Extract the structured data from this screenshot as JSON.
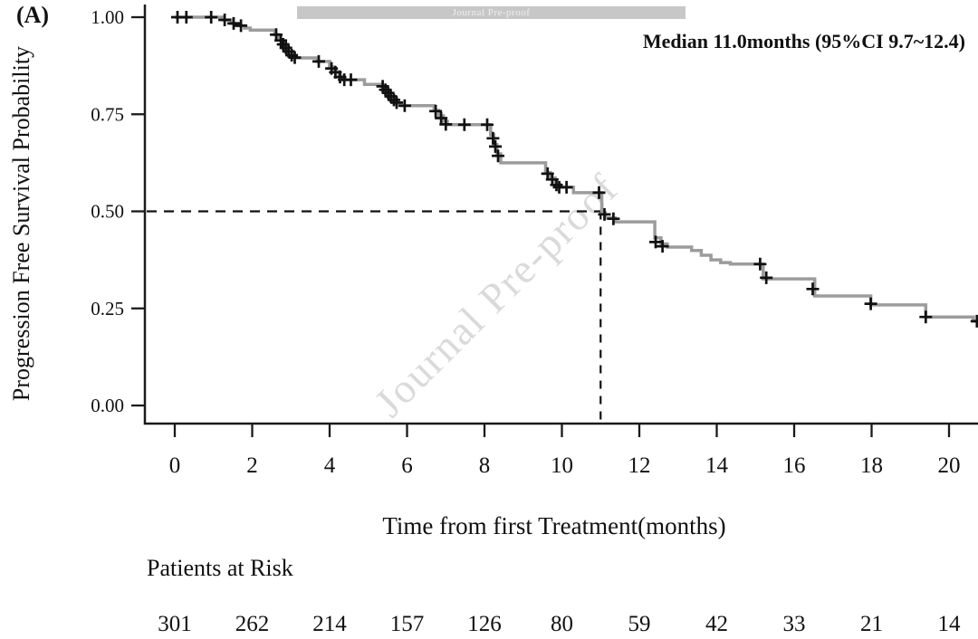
{
  "panel_label": "(A)",
  "watermark": {
    "banner_text": "Journal Pre-proof",
    "diagonal_text": "Journal Pre-proof"
  },
  "annotation": {
    "text": "Median 11.0months (95%CI 9.7~12.4)"
  },
  "risk_table": {
    "title": "Patients at Risk"
  },
  "chart_data": {
    "type": "line",
    "subtype": "kaplan-meier-step-curve",
    "title": "",
    "xlabel": "Time from first Treatment(months)",
    "ylabel": "Progression Free Survival Probability",
    "xlim": [
      0,
      20.78
    ],
    "ylim": [
      0,
      1
    ],
    "grid": false,
    "legend": "none",
    "x_ticks": [
      {
        "v": 0,
        "label": "0"
      },
      {
        "v": 2,
        "label": "2"
      },
      {
        "v": 4,
        "label": "4"
      },
      {
        "v": 6,
        "label": "6"
      },
      {
        "v": 8,
        "label": "8"
      },
      {
        "v": 10,
        "label": "10"
      },
      {
        "v": 12,
        "label": "12"
      },
      {
        "v": 14,
        "label": "14"
      },
      {
        "v": 16,
        "label": "16"
      },
      {
        "v": 18,
        "label": "18"
      },
      {
        "v": 20,
        "label": "20"
      }
    ],
    "y_ticks": [
      {
        "v": 1.0,
        "label": "1.00"
      },
      {
        "v": 0.75,
        "label": "0.75"
      },
      {
        "v": 0.5,
        "label": "0.50"
      },
      {
        "v": 0.25,
        "label": "0.25"
      },
      {
        "v": 0.0,
        "label": "0.00"
      }
    ],
    "median": {
      "time_months": 11.0,
      "ci_low": 9.7,
      "ci_high": 12.4,
      "survival_probability": 0.5
    },
    "reference_lines": {
      "horizontal_at_probability": 0.5,
      "vertical_at_time": 11.0,
      "style": "dashed"
    },
    "series": [
      {
        "name": "Progression Free Survival",
        "steps": [
          [
            0,
            1.0
          ],
          [
            1.25,
            0.993
          ],
          [
            1.45,
            0.984
          ],
          [
            1.62,
            0.978
          ],
          [
            1.8,
            0.972
          ],
          [
            1.95,
            0.967
          ],
          [
            2.58,
            0.955
          ],
          [
            2.68,
            0.942
          ],
          [
            2.76,
            0.931
          ],
          [
            2.84,
            0.92
          ],
          [
            2.92,
            0.91
          ],
          [
            3.02,
            0.9
          ],
          [
            3.1,
            0.895
          ],
          [
            3.68,
            0.886
          ],
          [
            4.0,
            0.872
          ],
          [
            4.12,
            0.86
          ],
          [
            4.24,
            0.848
          ],
          [
            4.34,
            0.839
          ],
          [
            4.9,
            0.827
          ],
          [
            5.35,
            0.822
          ],
          [
            5.43,
            0.813
          ],
          [
            5.5,
            0.805
          ],
          [
            5.58,
            0.796
          ],
          [
            5.65,
            0.787
          ],
          [
            5.73,
            0.779
          ],
          [
            5.86,
            0.772
          ],
          [
            6.7,
            0.76
          ],
          [
            6.82,
            0.746
          ],
          [
            6.94,
            0.732
          ],
          [
            7.04,
            0.723
          ],
          [
            8.16,
            0.697
          ],
          [
            8.24,
            0.672
          ],
          [
            8.32,
            0.648
          ],
          [
            8.42,
            0.625
          ],
          [
            9.58,
            0.6
          ],
          [
            9.7,
            0.586
          ],
          [
            9.83,
            0.57
          ],
          [
            9.95,
            0.562
          ],
          [
            10.3,
            0.548
          ],
          [
            11.03,
            0.497
          ],
          [
            11.12,
            0.483
          ],
          [
            11.38,
            0.473
          ],
          [
            12.4,
            0.432
          ],
          [
            12.56,
            0.416
          ],
          [
            12.72,
            0.408
          ],
          [
            13.35,
            0.399
          ],
          [
            13.6,
            0.387
          ],
          [
            13.85,
            0.375
          ],
          [
            14.1,
            0.368
          ],
          [
            14.35,
            0.364
          ],
          [
            15.2,
            0.326
          ],
          [
            16.53,
            0.282
          ],
          [
            17.98,
            0.259
          ],
          [
            19.4,
            0.228
          ],
          [
            20.63,
            0.217
          ]
        ]
      }
    ],
    "censor_marks": [
      [
        0.07,
        1.0
      ],
      [
        0.3,
        1.0
      ],
      [
        0.94,
        1.0
      ],
      [
        1.29,
        0.993
      ],
      [
        1.52,
        0.984
      ],
      [
        1.71,
        0.978
      ],
      [
        2.62,
        0.955
      ],
      [
        2.74,
        0.94
      ],
      [
        2.8,
        0.93
      ],
      [
        2.87,
        0.921
      ],
      [
        2.94,
        0.912
      ],
      [
        3.02,
        0.902
      ],
      [
        3.1,
        0.896
      ],
      [
        3.72,
        0.886
      ],
      [
        4.05,
        0.868
      ],
      [
        4.15,
        0.858
      ],
      [
        4.27,
        0.846
      ],
      [
        4.38,
        0.839
      ],
      [
        4.55,
        0.839
      ],
      [
        5.37,
        0.822
      ],
      [
        5.44,
        0.813
      ],
      [
        5.51,
        0.805
      ],
      [
        5.58,
        0.796
      ],
      [
        5.66,
        0.787
      ],
      [
        5.73,
        0.78
      ],
      [
        5.94,
        0.772
      ],
      [
        6.74,
        0.758
      ],
      [
        6.88,
        0.74
      ],
      [
        7.0,
        0.724
      ],
      [
        7.48,
        0.723
      ],
      [
        8.07,
        0.723
      ],
      [
        8.22,
        0.688
      ],
      [
        8.28,
        0.667
      ],
      [
        8.35,
        0.643
      ],
      [
        9.63,
        0.597
      ],
      [
        9.75,
        0.582
      ],
      [
        9.86,
        0.568
      ],
      [
        9.93,
        0.562
      ],
      [
        10.12,
        0.562
      ],
      [
        10.96,
        0.548
      ],
      [
        11.1,
        0.492
      ],
      [
        11.33,
        0.481
      ],
      [
        12.42,
        0.421
      ],
      [
        12.6,
        0.41
      ],
      [
        15.12,
        0.364
      ],
      [
        15.28,
        0.329
      ],
      [
        16.48,
        0.3
      ],
      [
        17.98,
        0.262
      ],
      [
        19.4,
        0.228
      ],
      [
        20.72,
        0.217
      ]
    ],
    "patients_at_risk": {
      "times": [
        0,
        2,
        4,
        6,
        8,
        10,
        12,
        14,
        16,
        18,
        20
      ],
      "counts": [
        301,
        262,
        214,
        157,
        126,
        80,
        59,
        42,
        33,
        21,
        14
      ]
    },
    "colors": {
      "curve": "#9c9c9c",
      "censor": "#111111",
      "axis": "#1a1a1a",
      "dashed_reference": "#111111",
      "watermark_diagonal": "#dadada",
      "banner_background": "#c7c7c7",
      "banner_text": "#f0f0f0"
    }
  }
}
